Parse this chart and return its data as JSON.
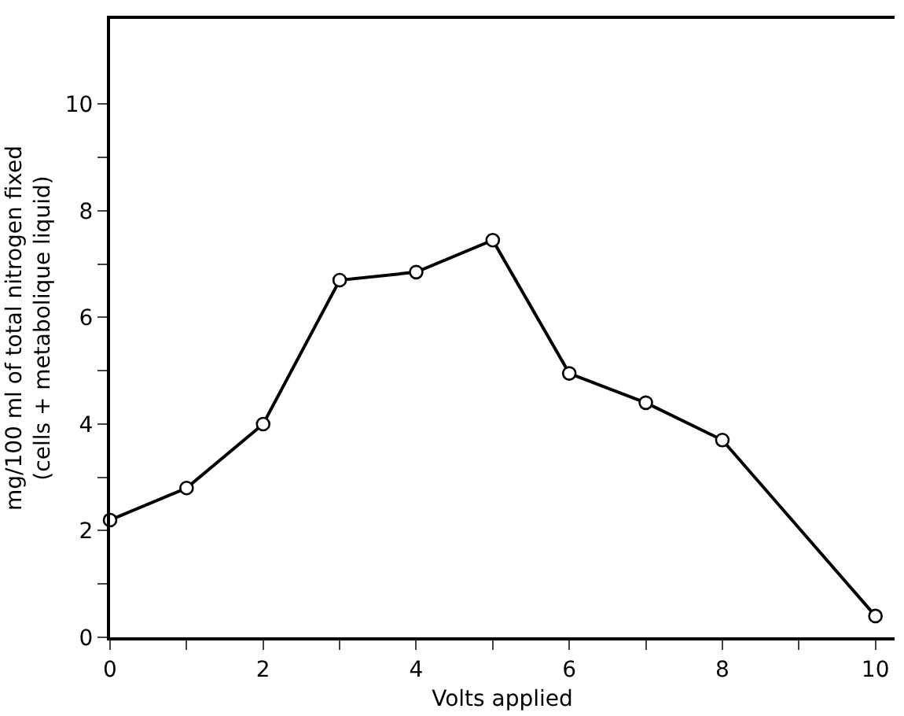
{
  "chart_data": {
    "type": "line",
    "xlabel": "Volts applied",
    "ylabel": "mg/100 ml of total nitrogen fixed\n(cells + metabolique liquid)",
    "x": [
      0,
      1,
      2,
      3,
      4,
      5,
      6,
      7,
      8,
      10
    ],
    "series": [
      {
        "color": "#000000",
        "values": [
          2.2,
          2.8,
          4.0,
          6.7,
          6.85,
          7.45,
          4.95,
          4.4,
          3.7,
          0.4
        ]
      }
    ],
    "xlim": [
      0,
      10.25
    ],
    "ylim": [
      0,
      11.6
    ],
    "xticks": [
      0,
      {
        "value": 1,
        "label": null
      },
      2,
      {
        "value": 3,
        "label": null
      },
      4,
      {
        "value": 5,
        "label": null
      },
      6,
      {
        "value": 7,
        "label": null
      },
      8,
      {
        "value": 9,
        "label": null
      },
      10
    ],
    "yticks": [
      0,
      {
        "value": 1,
        "label": null
      },
      2,
      {
        "value": 3,
        "label": null
      },
      4,
      {
        "value": 5,
        "label": null
      },
      6,
      {
        "value": 7,
        "label": null
      },
      8,
      {
        "value": 9,
        "label": null
      },
      10
    ],
    "grid": false,
    "legend": false,
    "marker": "circle",
    "line_style": "solid"
  }
}
